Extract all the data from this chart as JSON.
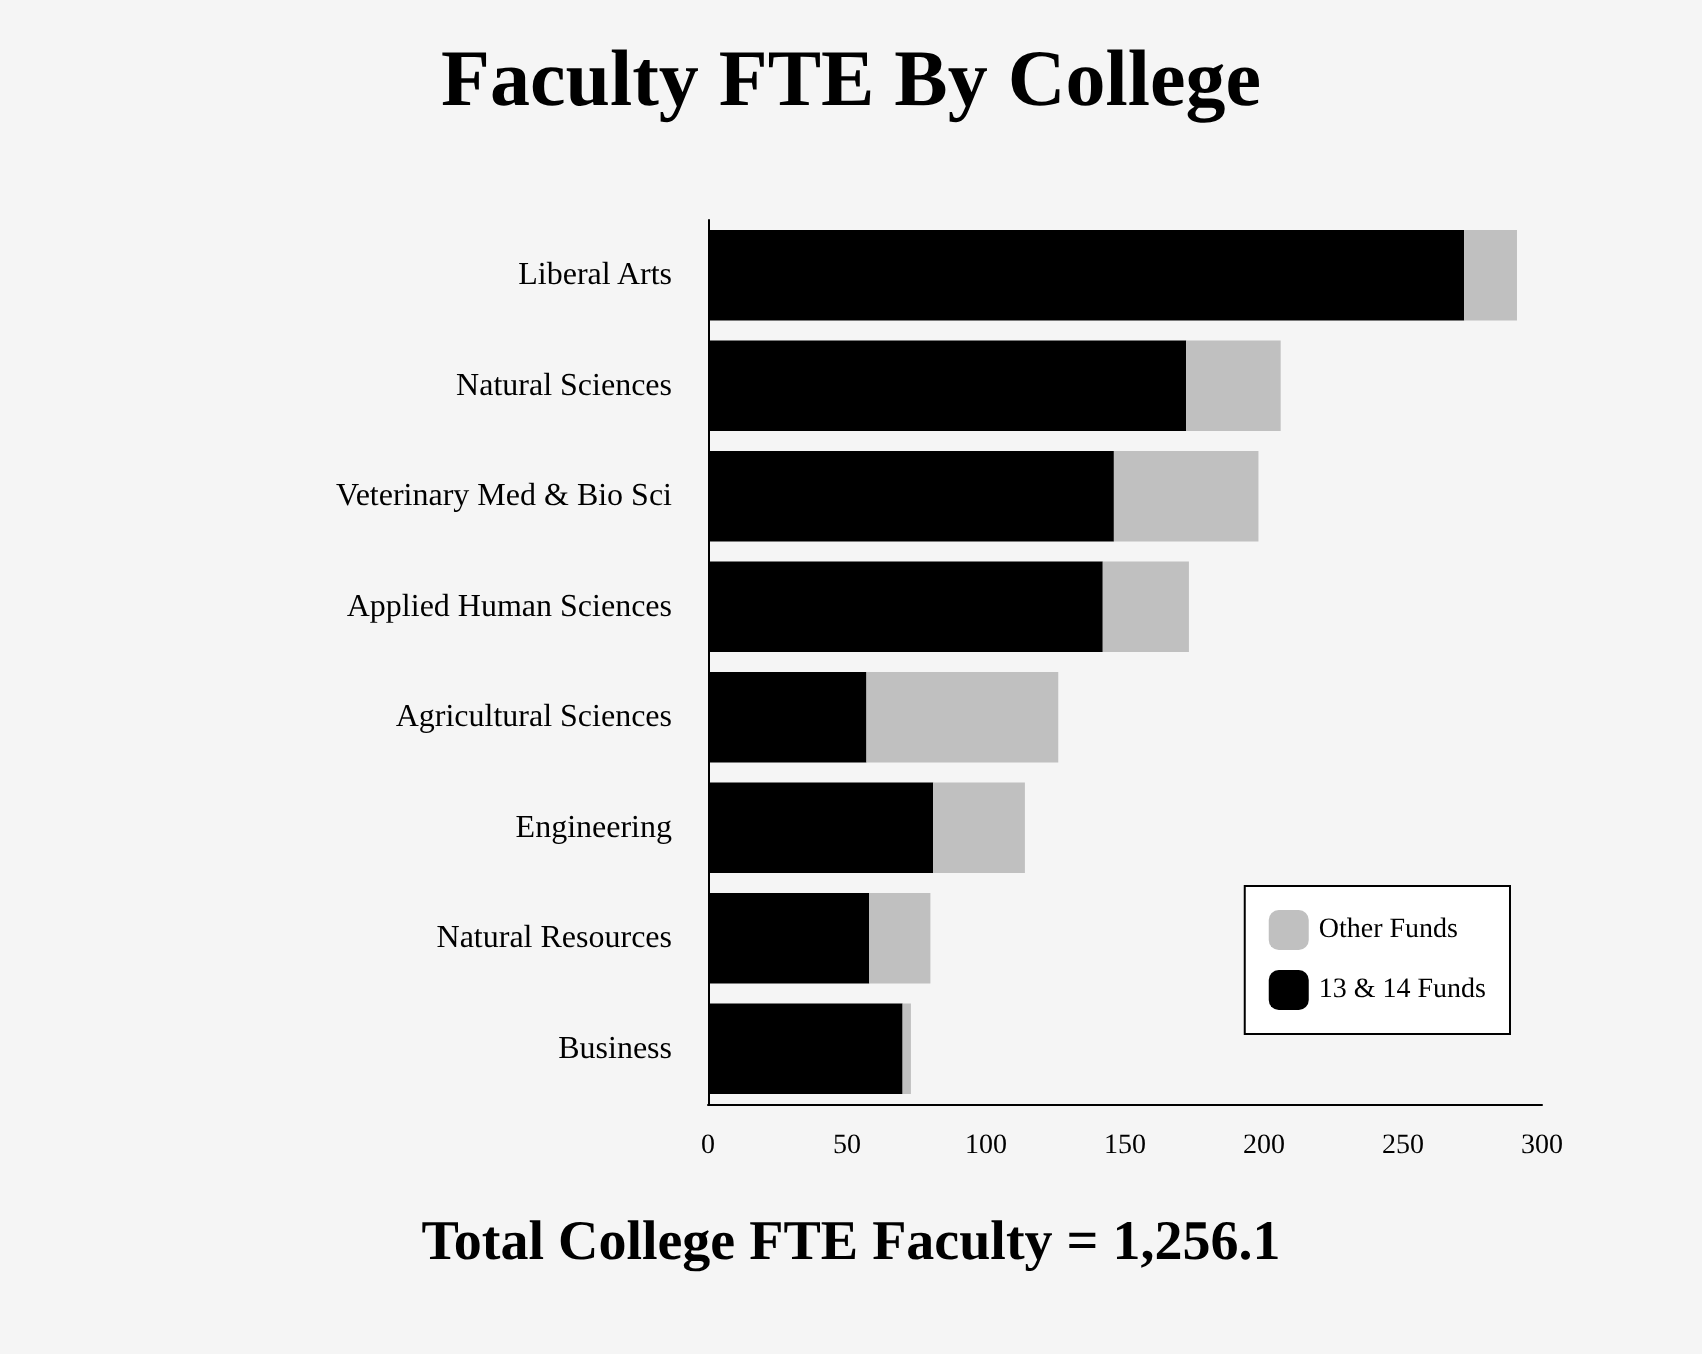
{
  "chart_data": {
    "type": "bar",
    "title": "Faculty FTE By College",
    "orientation": "horizontal",
    "stacked": true,
    "categories": [
      "Liberal Arts",
      "Natural Sciences",
      "Veterinary Med & Bio Sci",
      "Applied Human Sciences",
      "Agricultural Sciences",
      "Engineering",
      "Natural Resources",
      "Business"
    ],
    "series": [
      {
        "name": "13 & 14 Funds",
        "color": "#000000",
        "values": [
          272,
          172,
          146,
          142,
          57,
          81,
          58,
          70
        ]
      },
      {
        "name": "Other Funds",
        "color": "#c0c0c0",
        "values": [
          19,
          34,
          52,
          31,
          69,
          33,
          22,
          3
        ]
      }
    ],
    "xlim": [
      0,
      300
    ],
    "xticks": [
      0,
      50,
      100,
      150,
      200,
      250,
      300
    ],
    "grid": false,
    "legend": "bottom right",
    "annotations": [
      "Total College FTE Faculty = 1,256.1"
    ]
  }
}
